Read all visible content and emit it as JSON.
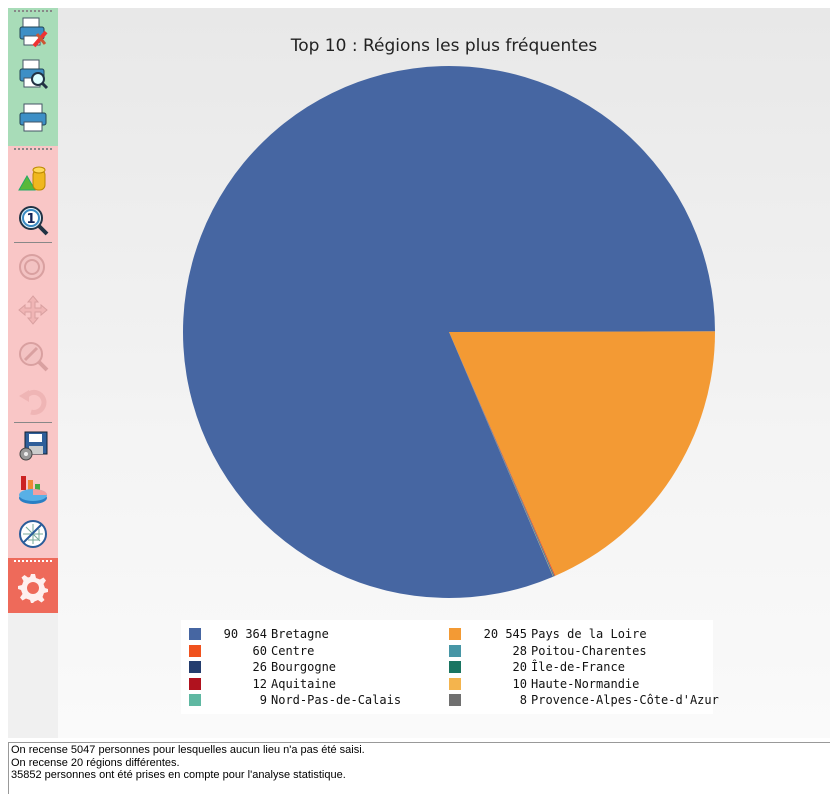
{
  "toolbar": {
    "groups": [
      {
        "name": "print",
        "color": "#a8dcb8",
        "buttons": [
          "print-setup-icon",
          "print-preview-icon",
          "printer-icon"
        ]
      },
      {
        "name": "view",
        "color": "#f9c6c6",
        "buttons": [
          "chart-3d-icon",
          "zoom-one-icon",
          "zoom-fit-icon",
          "pan-icon",
          "zoom-in-icon",
          "undo-icon",
          "save-disk-icon",
          "chart-type-icon",
          "gridlines-icon"
        ]
      },
      {
        "name": "settings",
        "color": "#ee6a5a",
        "buttons": [
          "gear-icon"
        ]
      }
    ]
  },
  "chart_data": {
    "type": "pie",
    "title": "Top 10 : Régions les plus fréquentes",
    "legend_position": "bottom",
    "slices": [
      {
        "label": "Bretagne",
        "value": 90364,
        "value_text": "90 364",
        "color": "#4666a2"
      },
      {
        "label": "Pays de la Loire",
        "value": 20545,
        "value_text": "20 545",
        "color": "#f39a34"
      },
      {
        "label": "Centre",
        "value": 60,
        "value_text": "60",
        "color": "#f0521e"
      },
      {
        "label": "Poitou-Charentes",
        "value": 28,
        "value_text": "28",
        "color": "#4796a6"
      },
      {
        "label": "Bourgogne",
        "value": 26,
        "value_text": "26",
        "color": "#243d6e"
      },
      {
        "label": "Île-de-France",
        "value": 20,
        "value_text": "20",
        "color": "#1a7561"
      },
      {
        "label": "Aquitaine",
        "value": 12,
        "value_text": "12",
        "color": "#b0121e"
      },
      {
        "label": "Haute-Normandie",
        "value": 10,
        "value_text": "10",
        "color": "#f4b44d"
      },
      {
        "label": "Nord-Pas-de-Calais",
        "value": 9,
        "value_text": "9",
        "color": "#5fb8a2"
      },
      {
        "label": "Provence-Alpes-Côte-d'Azur",
        "value": 8,
        "value_text": "8",
        "color": "#707070"
      }
    ]
  },
  "status": {
    "lines": [
      "On recense 5047 personnes pour lesquelles aucun lieu n'a pas été saisi.",
      "On recense 20 régions différentes.",
      "35852 personnes ont été prises en compte pour l'analyse statistique."
    ]
  }
}
